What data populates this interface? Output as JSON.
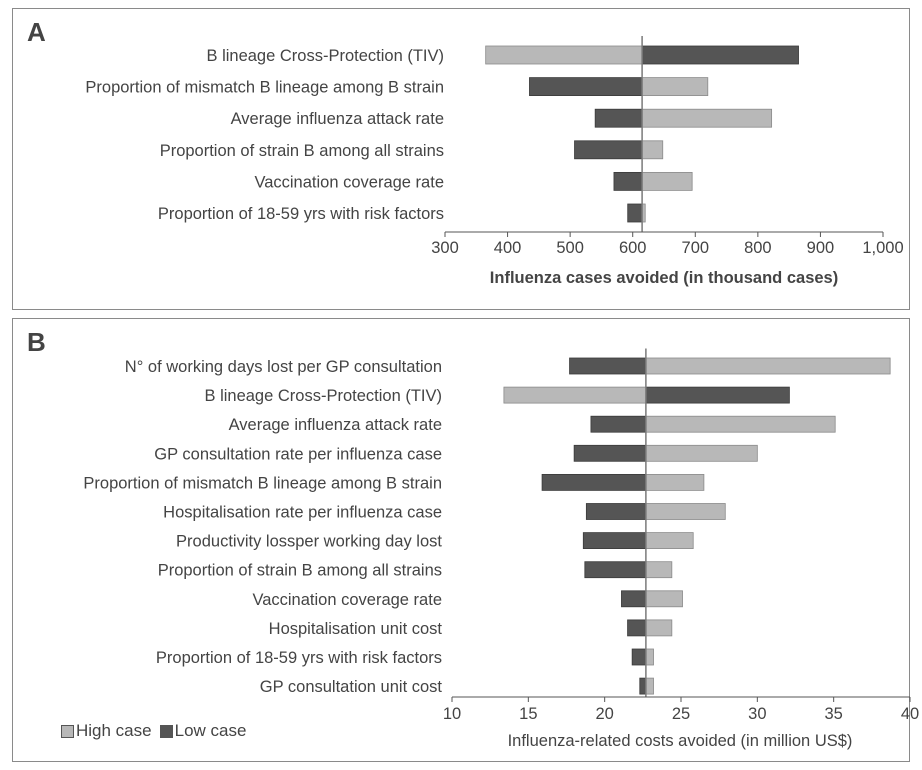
{
  "colors": {
    "high": "#b8b8b8",
    "low": "#555555",
    "text": "#444444",
    "axis": "#555555",
    "baseline": "#7a7a7a"
  },
  "legend": {
    "high_label": "High case",
    "low_label": "Low case"
  },
  "chart_data": [
    {
      "type": "tornado-bar",
      "panel_label": "A",
      "xlabel": "Influenza cases avoided  (in thousand cases)",
      "xlim": [
        300,
        1000
      ],
      "xticks": [
        "300",
        "400",
        "500",
        "600",
        "700",
        "800",
        "900",
        "1,000"
      ],
      "base_value": 615,
      "categories": [
        "B lineage Cross-Protection (TIV)",
        "Proportion of mismatch B lineage among B strain",
        "Average influenza attack rate",
        "Proportion of strain B among all strains",
        "Vaccination coverage rate",
        "Proportion of 18-59 yrs with risk factors"
      ],
      "series": [
        {
          "name": "High case",
          "values": [
            365,
            720,
            822,
            648,
            695,
            620
          ]
        },
        {
          "name": "Low case",
          "values": [
            865,
            435,
            540,
            507,
            570,
            592
          ]
        }
      ]
    },
    {
      "type": "tornado-bar",
      "panel_label": "B",
      "xlabel": "Influenza-related costs avoided (in million US$)",
      "xlim": [
        10,
        40
      ],
      "xticks": [
        "10",
        "15",
        "20",
        "25",
        "30",
        "35",
        "40"
      ],
      "base_value": 22.7,
      "categories": [
        "N° of working days lost per GP consultation",
        "B lineage Cross-Protection (TIV)",
        "Average influenza attack rate",
        "GP consultation rate per influenza case",
        "Proportion of mismatch B lineage among B strain",
        "Hospitalisation rate per influenza case",
        "Productivity  lossper working day lost",
        "Proportion of strain B among all strains",
        "Vaccination coverage rate",
        "Hospitalisation unit cost",
        "Proportion of 18-59 yrs with risk factors",
        "GP consultation unit cost"
      ],
      "series": [
        {
          "name": "High case",
          "values": [
            38.7,
            13.4,
            35.1,
            30.0,
            26.5,
            27.9,
            25.8,
            24.4,
            25.1,
            24.4,
            23.2,
            23.2
          ]
        },
        {
          "name": "Low case",
          "values": [
            17.7,
            32.1,
            19.1,
            18.0,
            15.9,
            18.8,
            18.6,
            18.7,
            21.1,
            21.5,
            21.8,
            22.3
          ]
        }
      ]
    }
  ]
}
